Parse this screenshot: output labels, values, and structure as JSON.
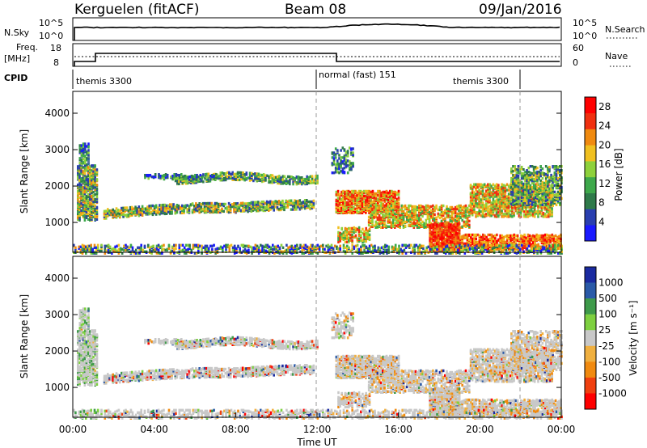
{
  "header": {
    "station": "Kerguelen (fitACF)",
    "beam": "Beam 08",
    "date": "09/Jan/2016"
  },
  "strips": {
    "nsky_label": "N.Sky",
    "nsky_ticks": [
      "10^5",
      "10^0"
    ],
    "nsearch_label": "N.Search",
    "nsearch_ticks": [
      "10^5",
      "10^0"
    ],
    "freq_label_line1": "Freq.",
    "freq_label_line2": "[MHz]",
    "freq_ticks": [
      "18",
      "8"
    ],
    "nave_label": "Nave",
    "nave_ticks": [
      "60",
      "0"
    ],
    "cpid_label": "CPID",
    "cpid_segments": [
      {
        "label": "themis 3300",
        "start_h": 0
      },
      {
        "label": "normal (fast) 151",
        "start_h": 12
      },
      {
        "label": "themis 3300",
        "start_h": 22
      }
    ]
  },
  "colors": {
    "power": [
      "#1a1aff",
      "#2a3fb0",
      "#2f7a4a",
      "#3ea84b",
      "#8ed13c",
      "#f0c020",
      "#f08a10",
      "#f03010",
      "#ff0000"
    ],
    "velocity": [
      "#ff0000",
      "#f04010",
      "#f08a10",
      "#f0b040",
      "#c8c8c8",
      "#7ed040",
      "#3e9a4a",
      "#2a5aa8",
      "#1a2aa0"
    ]
  },
  "chart_data": [
    {
      "type": "heatmap",
      "panel": "power",
      "xlabel": "Time UT",
      "ylabel": "Slant Range [km]",
      "x_ticks": [
        "00:00",
        "04:00",
        "08:00",
        "12:00",
        "16:00",
        "20:00",
        "00:00"
      ],
      "xlim_hours": [
        0,
        24
      ],
      "ylim_km": [
        180,
        4600
      ],
      "y_ticks": [
        1000,
        2000,
        3000,
        4000
      ],
      "colorbar": {
        "label": "Power [dB]",
        "ticks": [
          4,
          8,
          12,
          16,
          20,
          24,
          28
        ],
        "range": [
          0,
          30
        ]
      },
      "dashed_lines_hours": [
        12,
        22
      ]
    },
    {
      "type": "heatmap",
      "panel": "velocity",
      "xlabel": "Time UT",
      "ylabel": "Slant Range [km]",
      "x_ticks": [
        "00:00",
        "04:00",
        "08:00",
        "12:00",
        "16:00",
        "20:00",
        "00:00"
      ],
      "xlim_hours": [
        0,
        24
      ],
      "ylim_km": [
        180,
        4600
      ],
      "y_ticks": [
        1000,
        2000,
        3000,
        4000
      ],
      "colorbar": {
        "label": "Velocity [m s⁻¹]",
        "ticks": [
          "1000",
          "500",
          "100",
          "25",
          "-25",
          "-100",
          "-500",
          "-1000"
        ]
      },
      "dashed_lines_hours": [
        12,
        22
      ]
    }
  ]
}
